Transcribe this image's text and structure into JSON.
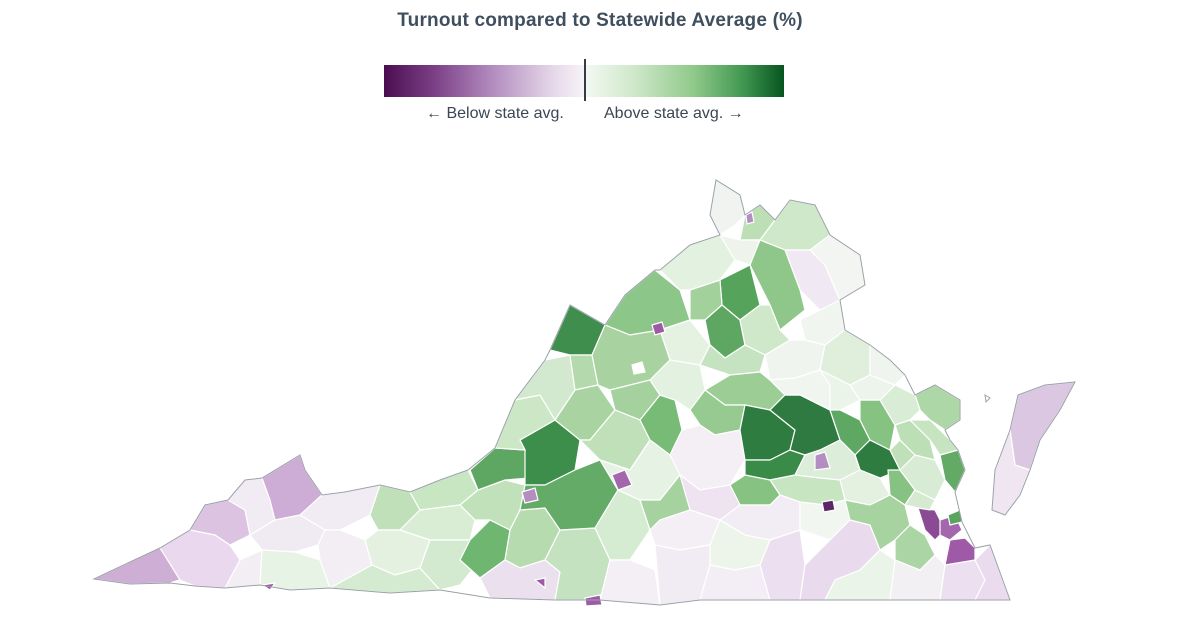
{
  "title": "Turnout compared to Statewide Average (%)",
  "legend": {
    "below_label": "← Below state avg.",
    "above_label": "Above state avg. →",
    "below_colors": [
      "#4a0e50",
      "#7b3f86",
      "#b48ec0",
      "#e6d9ea",
      "#f7f3f8"
    ],
    "above_colors": [
      "#f4f9f3",
      "#cfe8ca",
      "#8fc98a",
      "#3f964f",
      "#06541f"
    ]
  },
  "map": {
    "region": "Virginia",
    "color_scale": "diverging purple-green centered on statewide average"
  }
}
